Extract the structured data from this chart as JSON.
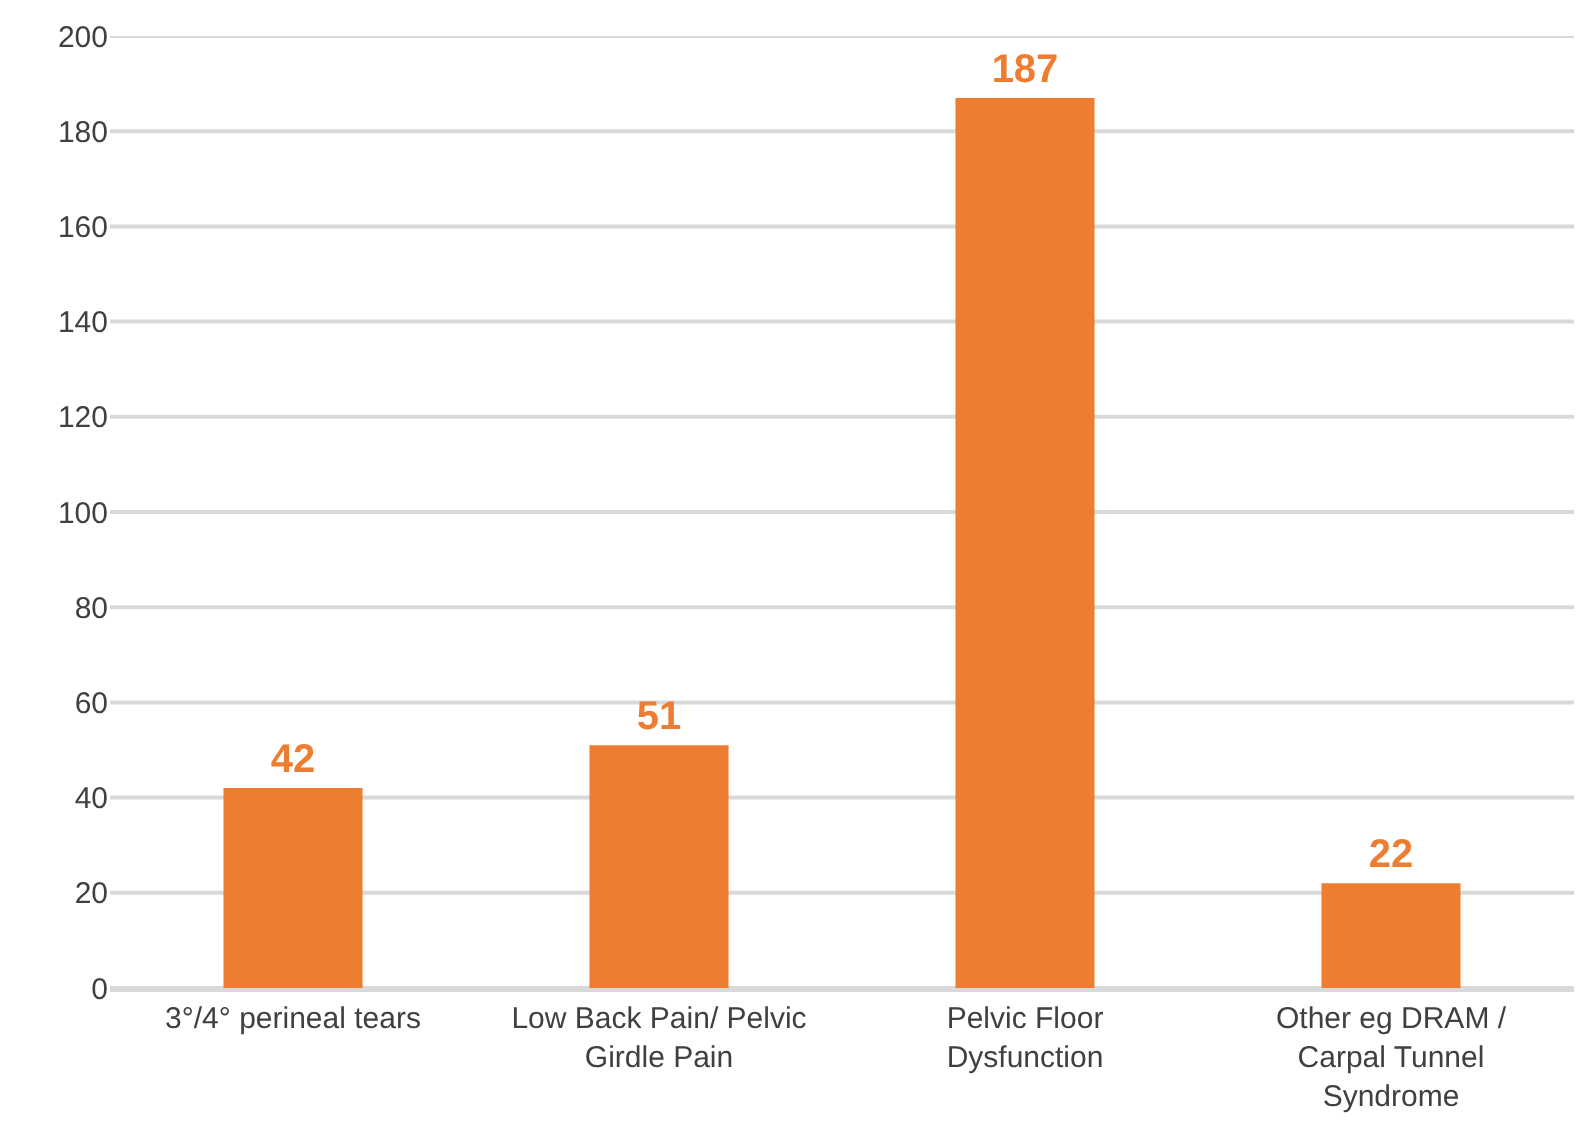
{
  "chart_data": {
    "type": "bar",
    "categories": [
      "3°/4° perineal tears",
      "Low Back Pain/ Pelvic Girdle Pain",
      "Pelvic Floor Dysfunction",
      "Other eg DRAM / Carpal Tunnel Syndrome"
    ],
    "values": [
      42,
      51,
      187,
      22
    ],
    "color": "#ed7d31",
    "ylim": [
      0,
      200
    ],
    "yticks": [
      0,
      20,
      40,
      60,
      80,
      100,
      120,
      140,
      160,
      180,
      200
    ],
    "grid": "y",
    "data_labels": true
  }
}
